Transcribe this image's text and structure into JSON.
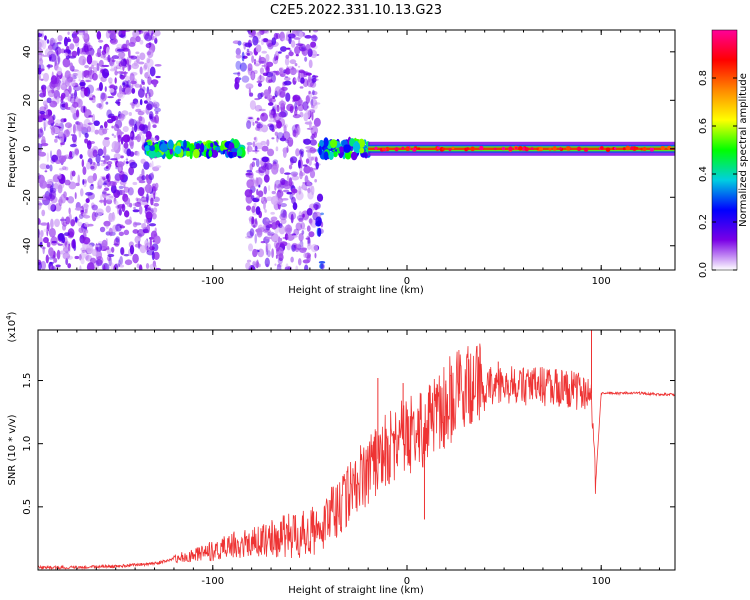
{
  "title": "C2E5.2022.331.10.13.G23",
  "colors": {
    "snr_line": "#ee3333",
    "colormap": [
      "#ffffff",
      "#7a00e6",
      "#0000ff",
      "#00cfe0",
      "#00ff00",
      "#ffff00",
      "#ff8800",
      "#ff0000",
      "#ff0099"
    ]
  },
  "chart_data": [
    {
      "type": "heatmap",
      "xlabel": "Height of straight line (km)",
      "ylabel": "Frequency (Hz)",
      "xlim": [
        -190,
        138
      ],
      "ylim": [
        -50,
        49
      ],
      "xticks": [
        {
          "value": -100,
          "label": "-100"
        },
        {
          "value": 0,
          "label": "0"
        },
        {
          "value": 100,
          "label": "100"
        }
      ],
      "yticks": [
        {
          "value": -40,
          "label": "-40"
        },
        {
          "value": -20,
          "label": "-20"
        },
        {
          "value": 0,
          "label": "0"
        },
        {
          "value": 20,
          "label": "20"
        },
        {
          "value": 40,
          "label": "40"
        }
      ],
      "colorbar": {
        "label": "Normalized spectral amplitude",
        "range": [
          0,
          1
        ],
        "ticks": [
          {
            "value": 0.0,
            "label": "0.0"
          },
          {
            "value": 0.2,
            "label": "0.2"
          },
          {
            "value": 0.4,
            "label": "0.4"
          },
          {
            "value": 0.6,
            "label": "0.6"
          },
          {
            "value": 0.8,
            "label": "0.8"
          }
        ]
      },
      "regions": [
        {
          "x": [
            -190,
            -128
          ],
          "freq": [
            -50,
            49
          ],
          "amplitude": 0.12,
          "kind": "noise"
        },
        {
          "x": [
            -135,
            -85
          ],
          "freq": [
            -4,
            4
          ],
          "amplitude": 0.45,
          "kind": "band"
        },
        {
          "x": [
            -88,
            -83
          ],
          "freq": [
            25,
            45
          ],
          "amplitude": 0.2,
          "kind": "noise"
        },
        {
          "x": [
            -82,
            -46
          ],
          "freq": [
            -50,
            49
          ],
          "amplitude": 0.12,
          "kind": "noise"
        },
        {
          "x": [
            -46,
            -43
          ],
          "freq": [
            -50,
            -20
          ],
          "amplitude": 0.25,
          "kind": "noise"
        },
        {
          "x": [
            -45,
            -20
          ],
          "freq": [
            -5,
            5
          ],
          "amplitude": 0.45,
          "kind": "band"
        },
        {
          "x": [
            -20,
            138
          ],
          "freq": [
            -1,
            1
          ],
          "amplitude": 0.85,
          "kind": "line"
        }
      ]
    },
    {
      "type": "line",
      "xlabel": "Height of straight line (km)",
      "ylabel": "SNR (10 * v/v)",
      "yscale_label": "(x10",
      "yscale_exp": "4",
      "xlim": [
        -190,
        138
      ],
      "ylim": [
        0,
        1.9
      ],
      "xticks": [
        {
          "value": -100,
          "label": "-100"
        },
        {
          "value": 0,
          "label": "0"
        },
        {
          "value": 100,
          "label": "100"
        }
      ],
      "yticks": [
        {
          "value": 0.5,
          "label": "0.5"
        },
        {
          "value": 1.0,
          "label": "1.0"
        },
        {
          "value": 1.5,
          "label": "1.5"
        }
      ],
      "series": [
        {
          "x": [
            -190,
            -170,
            -150,
            -130,
            -120,
            -110,
            -100,
            -90,
            -80,
            -70,
            -60,
            -50,
            -45,
            -40,
            -35,
            -30,
            -25,
            -20,
            -15,
            -10,
            -5,
            0,
            5,
            10,
            15,
            20,
            25,
            30,
            35,
            40,
            45,
            50,
            55,
            60,
            65,
            70,
            75,
            80,
            85,
            90,
            95,
            97,
            100,
            110,
            120,
            130,
            138
          ],
          "y": [
            0.02,
            0.02,
            0.03,
            0.05,
            0.09,
            0.12,
            0.15,
            0.2,
            0.22,
            0.25,
            0.27,
            0.3,
            0.35,
            0.42,
            0.5,
            0.6,
            0.7,
            0.8,
            0.88,
            0.95,
            1.0,
            1.05,
            1.1,
            1.18,
            1.25,
            1.32,
            1.38,
            1.42,
            1.44,
            1.45,
            1.46,
            1.47,
            1.47,
            1.46,
            1.46,
            1.45,
            1.45,
            1.44,
            1.43,
            1.42,
            1.4,
            0.65,
            1.4,
            1.4,
            1.4,
            1.39,
            1.39
          ],
          "spikes": [
            {
              "x": -15,
              "y": 1.52
            },
            {
              "x": -2,
              "y": 1.48
            },
            {
              "x": 9,
              "y": 0.4
            },
            {
              "x": 20,
              "y": 1.5
            },
            {
              "x": 27,
              "y": 1.6
            },
            {
              "x": 47,
              "y": 1.65
            },
            {
              "x": 95,
              "y": 1.9
            },
            {
              "x": 97,
              "y": 0.65
            }
          ]
        }
      ]
    }
  ]
}
